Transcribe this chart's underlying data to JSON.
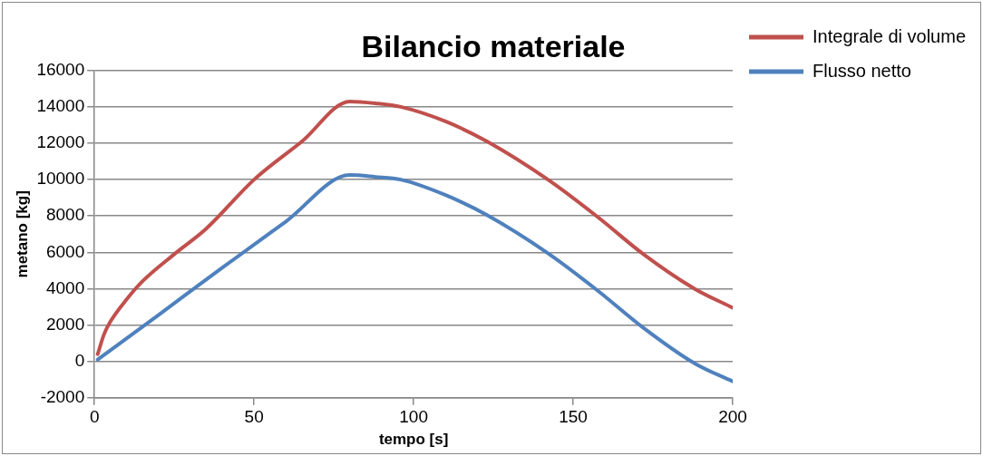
{
  "chart_data": {
    "type": "line",
    "title": "Bilancio materiale",
    "xlabel": "tempo [s]",
    "ylabel": "metano [kg]",
    "xlim": [
      0,
      200
    ],
    "xticks": [
      0,
      50,
      100,
      150,
      200
    ],
    "ylim": [
      -2000,
      16000
    ],
    "yticks": [
      -2000,
      0,
      2000,
      4000,
      6000,
      8000,
      10000,
      12000,
      14000,
      16000
    ],
    "grid": "y",
    "legend": "right",
    "marker": "none",
    "line_style": "solid",
    "series": [
      {
        "name": "Integrale di volume",
        "color": "#c0504d",
        "x": [
          1,
          3,
          5,
          10,
          15,
          25,
          35,
          50,
          65,
          80,
          88,
          96,
          110,
          123,
          142.5,
          158,
          172,
          188,
          200
        ],
        "values": [
          400,
          1500,
          2200,
          3400,
          4400,
          5900,
          7300,
          10000,
          12100,
          14300,
          14200,
          14000,
          13200,
          12100,
          9950,
          7900,
          5900,
          4000,
          2950
        ]
      },
      {
        "name": "Flusso netto",
        "color": "#4f81bd",
        "x": [
          1,
          20,
          40,
          60,
          80,
          88,
          96,
          110,
          123,
          142.5,
          158,
          172,
          188,
          200
        ],
        "values": [
          100,
          2550,
          5150,
          7700,
          10250,
          10150,
          10000,
          9150,
          8050,
          5900,
          3850,
          1850,
          -100,
          -1100
        ]
      }
    ]
  }
}
